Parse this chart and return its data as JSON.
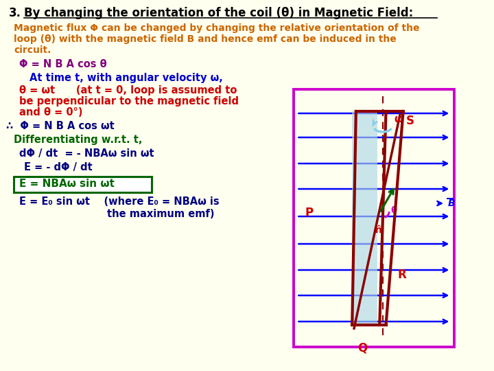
{
  "bg_color": "#FFFFF0",
  "title_num": "3.",
  "title_text": "By changing the orientation of the coil (θ) in Magnetic Field:",
  "title_color": "#000000",
  "para_color": "#CC6600",
  "para_lines": [
    "Magnetic flux Φ can be changed by changing the relative orientation of the",
    "loop (θ) with the magnetic field B and hence emf can be induced in the",
    "circuit."
  ],
  "eq1_color": "#800080",
  "eq1_text": "Φ = N B A cos θ",
  "sub1_color": "#0000CD",
  "sub1_text": "At time t, with angular velocity ω,",
  "sub2_color": "#CC0000",
  "sub2_lines": [
    "θ = ωt      (at t = 0, loop is assumed to",
    "be perpendicular to the magnetic field",
    "and θ = 0°)"
  ],
  "bullet_color": "#000080",
  "bullet_text": "∴  Φ = N B A cos ωt",
  "diff_color": "#006600",
  "diff_text": "Differentiating w.r.t. t,",
  "deriv_color": "#000080",
  "deriv_text": "dΦ / dt  = - NBAω sin ωt",
  "emf1_color": "#000080",
  "emf1_text": "E = - dΦ / dt",
  "boxed_color": "#006600",
  "boxed_text": "E = NBAω sin ωt",
  "boxed_bg": "#FFFFFF",
  "boxed_border": "#006600",
  "final_color": "#000080",
  "final_text": "E = E₀ sin ωt    (where E₀ = NBAω is",
  "final2_text": "the maximum emf)",
  "diagram_box_color": "#CC00CC",
  "arrow_color": "#0000FF",
  "coil_color": "#8B0000",
  "coil_fill": "#ADD8E6",
  "dashed_color": "#8B0000",
  "omega_color": "#CC0000",
  "omega_arc_color": "#87CEEB",
  "label_color": "#CC0000",
  "n_hat_color": "#CC0000",
  "theta_color": "#CC00CC",
  "n_arrow_color": "#006400",
  "B_color": "#0000FF",
  "title_fs": 12,
  "para_fs": 10,
  "eq_fs": 10.5,
  "small_fs": 9.5
}
